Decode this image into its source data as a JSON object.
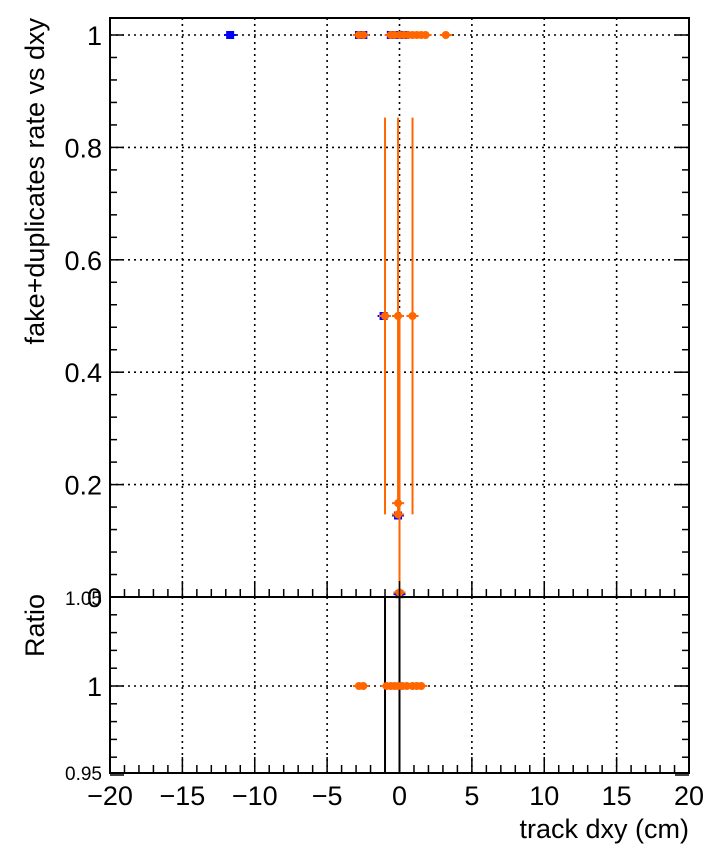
{
  "chart_data": [
    {
      "type": "scatter",
      "panel": "main",
      "title": "",
      "xlabel": "",
      "ylabel": "fake+duplicates rate vs dxy",
      "xlim": [
        -20,
        20
      ],
      "ylim": [
        0,
        1.0
      ],
      "x_ticks": [
        -20,
        -15,
        -10,
        -5,
        0,
        5,
        10,
        15,
        20
      ],
      "y_ticks": [
        {
          "value": 0,
          "label": "0"
        },
        {
          "value": 0.2,
          "label": "0.2"
        },
        {
          "value": 0.4,
          "label": "0.4"
        },
        {
          "value": 0.6,
          "label": "0.6"
        },
        {
          "value": 0.8,
          "label": "0.8"
        },
        {
          "value": 1.0,
          "label": "1"
        }
      ],
      "grid": true,
      "series": [
        {
          "color": "#0000ff",
          "marker": "square",
          "points": [
            {
              "x": -11.7,
              "y": 1.0
            },
            {
              "x": -2.8,
              "y": 1.0
            },
            {
              "x": -2.5,
              "y": 1.0
            },
            {
              "x": -0.6,
              "y": 1.0
            },
            {
              "x": -0.35,
              "y": 1.0
            },
            {
              "x": 0.05,
              "y": 1.0
            },
            {
              "x": 0.4,
              "y": 1.0
            },
            {
              "x": -1.1,
              "y": 0.5
            },
            {
              "x": -0.1,
              "y": 0.145
            },
            {
              "x": 0.0,
              "y": 0.005
            }
          ]
        },
        {
          "color": "#ff6600",
          "marker": "circle",
          "points": [
            {
              "x": -2.8,
              "y": 1.0
            },
            {
              "x": -2.5,
              "y": 1.0
            },
            {
              "x": -0.6,
              "y": 1.0
            },
            {
              "x": -0.35,
              "y": 1.0
            },
            {
              "x": 0.0,
              "y": 1.0
            },
            {
              "x": 0.3,
              "y": 1.0
            },
            {
              "x": 0.6,
              "y": 1.0
            },
            {
              "x": 0.9,
              "y": 1.0
            },
            {
              "x": 1.2,
              "y": 1.0
            },
            {
              "x": 1.5,
              "y": 1.0
            },
            {
              "x": 1.8,
              "y": 1.0
            },
            {
              "x": 3.2,
              "y": 1.0
            },
            {
              "x": -1.0,
              "y": 0.5,
              "y_low": 0.147,
              "y_high": 0.853
            },
            {
              "x": -0.1,
              "y": 0.5,
              "y_low": 0.147,
              "y_high": 0.853
            },
            {
              "x": 0.9,
              "y": 0.5,
              "y_low": 0.147,
              "y_high": 0.853
            },
            {
              "x": -0.1,
              "y": 0.167
            },
            {
              "x": -0.1,
              "y": 0.147
            },
            {
              "x": 0.0,
              "y": 0.008
            }
          ]
        }
      ]
    },
    {
      "type": "scatter",
      "panel": "ratio",
      "title": "",
      "xlabel": "track dxy (cm)",
      "ylabel": "Ratio",
      "xlim": [
        -20,
        20
      ],
      "ylim": [
        0.95,
        1.05
      ],
      "x_ticks": [
        -20,
        -15,
        -10,
        -5,
        0,
        5,
        10,
        15,
        20
      ],
      "y_ticks": [
        {
          "value": 0.95,
          "label": "0.95"
        },
        {
          "value": 1.0,
          "label": "1"
        },
        {
          "value": 1.05,
          "label": "1.05"
        }
      ],
      "grid": true,
      "series": [
        {
          "color": "#ff6600",
          "marker": "circle",
          "points": [
            {
              "x": -2.8,
              "y": 1.0
            },
            {
              "x": -2.5,
              "y": 1.0
            },
            {
              "x": -0.9,
              "y": 1.0
            },
            {
              "x": -0.6,
              "y": 1.0
            },
            {
              "x": -0.35,
              "y": 1.0
            },
            {
              "x": -0.1,
              "y": 1.0
            },
            {
              "x": 0.2,
              "y": 1.0
            },
            {
              "x": 0.5,
              "y": 1.0
            },
            {
              "x": 0.9,
              "y": 1.0
            },
            {
              "x": 1.2,
              "y": 1.0
            },
            {
              "x": 1.5,
              "y": 1.0
            }
          ]
        }
      ],
      "vertical_lines": [
        {
          "x": -1.0,
          "color": "#000000"
        },
        {
          "x": 0.0,
          "color": "#000000"
        }
      ]
    }
  ]
}
